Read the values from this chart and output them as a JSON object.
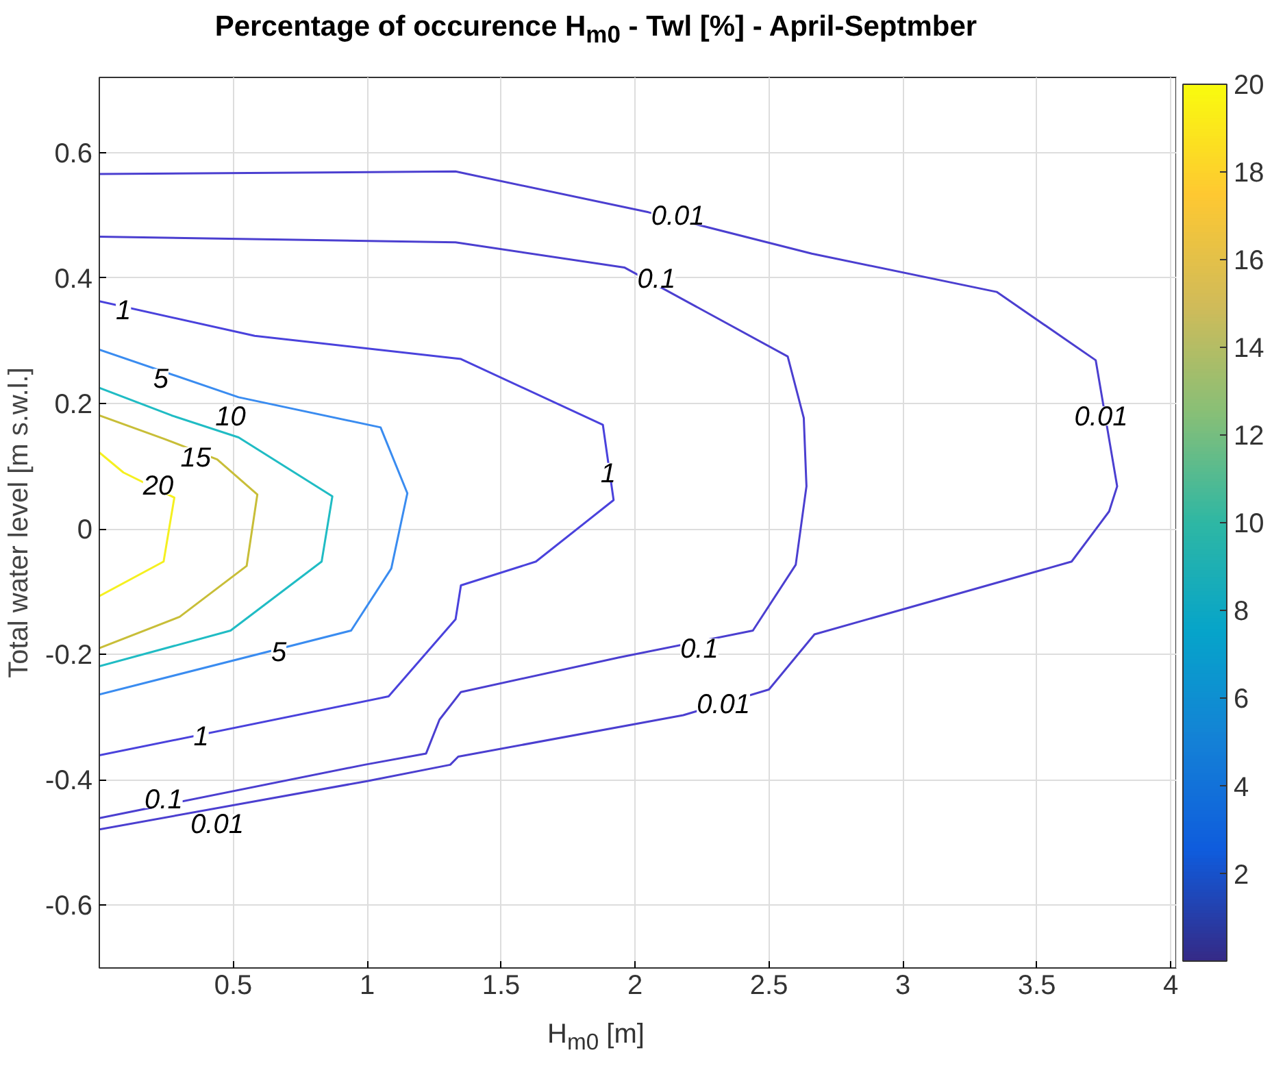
{
  "chart_data": {
    "type": "line",
    "title": "Percentage of occurence H$_{m0}$ - Twl [%] - April-Septmber",
    "xlabel": "H$_{m0}$ [m]",
    "ylabel": "Total water level [m s.w.l.]",
    "xlim": [
      0,
      4.02
    ],
    "ylim": [
      -0.7,
      0.72
    ],
    "xticks": [
      0.5,
      1,
      1.5,
      2,
      2.5,
      3,
      3.5,
      4
    ],
    "yticks": [
      -0.6,
      -0.4,
      -0.2,
      0,
      0.2,
      0.4,
      0.6
    ],
    "grid": true,
    "marker": "none",
    "line_style": "solid",
    "clim": [
      0.01,
      20
    ],
    "cticks": [
      2,
      4,
      6,
      8,
      10,
      12,
      14,
      16,
      18,
      20
    ],
    "series": [
      {
        "color": "#4b3fd0",
        "x": [
          0,
          1.33,
          2.05,
          2.66,
          3.35,
          3.72,
          3.8,
          3.77,
          3.63,
          2.67,
          2.5,
          2.18,
          1.34,
          1.31,
          1.0,
          0
        ],
        "values": [
          0.566,
          0.57,
          0.505,
          0.439,
          0.378,
          0.269,
          0.068,
          0.028,
          -0.052,
          -0.168,
          -0.256,
          -0.297,
          -0.363,
          -0.376,
          -0.402,
          -0.479
        ]
      },
      {
        "color": "#4b3fd0",
        "x": [
          0,
          1.33,
          1.96,
          2.57,
          2.63,
          2.64,
          2.6,
          2.44,
          1.94,
          1.35,
          1.27,
          1.22,
          0.99,
          0
        ],
        "values": [
          0.466,
          0.457,
          0.417,
          0.275,
          0.177,
          0.068,
          -0.057,
          -0.162,
          -0.205,
          -0.26,
          -0.304,
          -0.358,
          -0.376,
          -0.461
        ]
      },
      {
        "color": "#4a42dc",
        "x": [
          0,
          0.58,
          1.35,
          1.88,
          1.92,
          1.63,
          1.35,
          1.33,
          1.08,
          0
        ],
        "values": [
          0.363,
          0.308,
          0.271,
          0.166,
          0.046,
          -0.052,
          -0.09,
          -0.144,
          -0.267,
          -0.361
        ]
      },
      {
        "color": "#3a8cf0",
        "x": [
          0,
          0.52,
          1.05,
          1.15,
          1.09,
          0.94,
          0
        ],
        "values": [
          0.286,
          0.21,
          0.162,
          0.057,
          -0.063,
          -0.162,
          -0.264
        ]
      },
      {
        "color": "#20bcc4",
        "x": [
          0,
          0.27,
          0.52,
          0.87,
          0.83,
          0.49,
          0
        ],
        "values": [
          0.225,
          0.181,
          0.146,
          0.052,
          -0.052,
          -0.162,
          -0.219
        ]
      },
      {
        "color": "#c8be38",
        "x": [
          0,
          0.24,
          0.44,
          0.59,
          0.55,
          0.3,
          0
        ],
        "values": [
          0.181,
          0.144,
          0.111,
          0.055,
          -0.059,
          -0.14,
          -0.19
        ]
      },
      {
        "color": "#f5f020",
        "x": [
          0,
          0.09,
          0.28,
          0.24,
          0
        ],
        "values": [
          0.122,
          0.09,
          0.05,
          -0.052,
          -0.107
        ]
      }
    ],
    "annotations": [
      {
        "text": "0.01",
        "x": 2.16,
        "y": 0.5
      },
      {
        "text": "0.01",
        "x": 3.74,
        "y": 0.18
      },
      {
        "text": "0.01",
        "x": 2.33,
        "y": -0.278
      },
      {
        "text": "0.01",
        "x": 0.44,
        "y": -0.47
      },
      {
        "text": "0.1",
        "x": 2.08,
        "y": 0.4
      },
      {
        "text": "0.1",
        "x": 2.24,
        "y": -0.19
      },
      {
        "text": "0.1",
        "x": 0.24,
        "y": -0.43
      },
      {
        "text": "1",
        "x": 0.09,
        "y": 0.35
      },
      {
        "text": "1",
        "x": 1.9,
        "y": 0.09
      },
      {
        "text": "1",
        "x": 0.38,
        "y": -0.33
      },
      {
        "text": "5",
        "x": 0.23,
        "y": 0.24
      },
      {
        "text": "5",
        "x": 0.67,
        "y": -0.195
      },
      {
        "text": "10",
        "x": 0.49,
        "y": 0.18
      },
      {
        "text": "15",
        "x": 0.36,
        "y": 0.115
      },
      {
        "text": "20",
        "x": 0.22,
        "y": 0.07
      }
    ]
  }
}
